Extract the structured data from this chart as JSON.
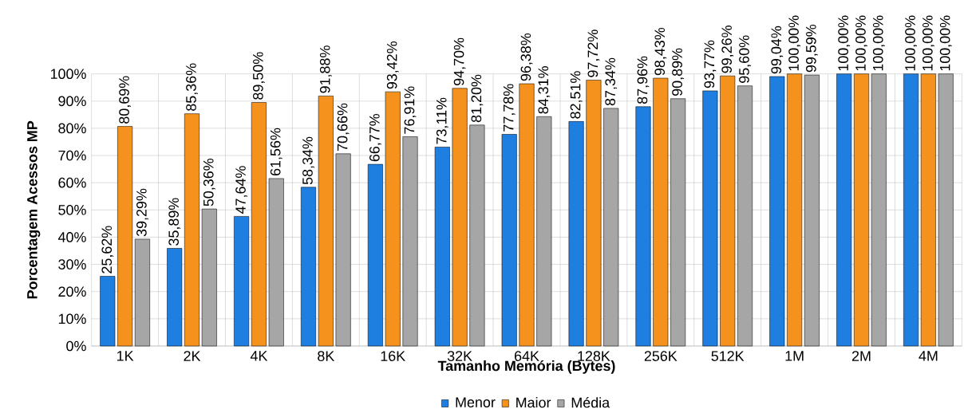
{
  "chart_data": {
    "type": "bar",
    "xlabel": "Tamanho Memória  (Bytes)",
    "ylabel": "Porcentagem Acessos MP",
    "categories": [
      "1K",
      "2K",
      "4K",
      "8K",
      "16K",
      "32K",
      "64K",
      "128K",
      "256K",
      "512K",
      "1M",
      "2M",
      "4M"
    ],
    "series": [
      {
        "name": "Menor",
        "color": "#1f7fe0",
        "values": [
          25.62,
          35.89,
          47.64,
          58.34,
          66.77,
          73.11,
          77.78,
          82.51,
          87.96,
          93.77,
          99.04,
          100,
          100
        ],
        "value_labels": [
          "25,62%",
          "35,89%",
          "47,64%",
          "58,34%",
          "66,77%",
          "73,11%",
          "77,78%",
          "82,51%",
          "87,96%",
          "93,77%",
          "99,04%",
          "100,00%",
          "100,00%"
        ]
      },
      {
        "name": "Maior",
        "color": "#f5921e",
        "values": [
          80.69,
          85.36,
          89.5,
          91.88,
          93.42,
          94.7,
          96.38,
          97.72,
          98.43,
          99.26,
          100,
          100,
          100
        ],
        "value_labels": [
          "80,69%",
          "85,36%",
          "89,50%",
          "91,88%",
          "93,42%",
          "94,70%",
          "96,38%",
          "97,72%",
          "98,43%",
          "99,26%",
          "100,00%",
          "100,00%",
          "100,00%"
        ]
      },
      {
        "name": "Média",
        "color": "#a6a6a6",
        "values": [
          39.29,
          50.36,
          61.56,
          70.66,
          76.91,
          81.2,
          84.31,
          87.34,
          90.89,
          95.6,
          99.59,
          100,
          100
        ],
        "value_labels": [
          "39,29%",
          "50,36%",
          "61,56%",
          "70,66%",
          "76,91%",
          "81,20%",
          "84,31%",
          "87,34%",
          "90,89%",
          "95,60%",
          "99,59%",
          "100,00%",
          "100,00%"
        ]
      }
    ],
    "ylim": [
      0,
      100
    ],
    "yticks": [
      {
        "value": 0,
        "label": "0%"
      },
      {
        "value": 10,
        "label": "10%"
      },
      {
        "value": 20,
        "label": "20%"
      },
      {
        "value": 30,
        "label": "30%"
      },
      {
        "value": 40,
        "label": "40%"
      },
      {
        "value": 50,
        "label": "50%"
      },
      {
        "value": 60,
        "label": "60%"
      },
      {
        "value": 70,
        "label": "70%"
      },
      {
        "value": 80,
        "label": "80%"
      },
      {
        "value": 90,
        "label": "90%"
      },
      {
        "value": 100,
        "label": "100%"
      }
    ],
    "grid": true,
    "legend": "bottom"
  }
}
